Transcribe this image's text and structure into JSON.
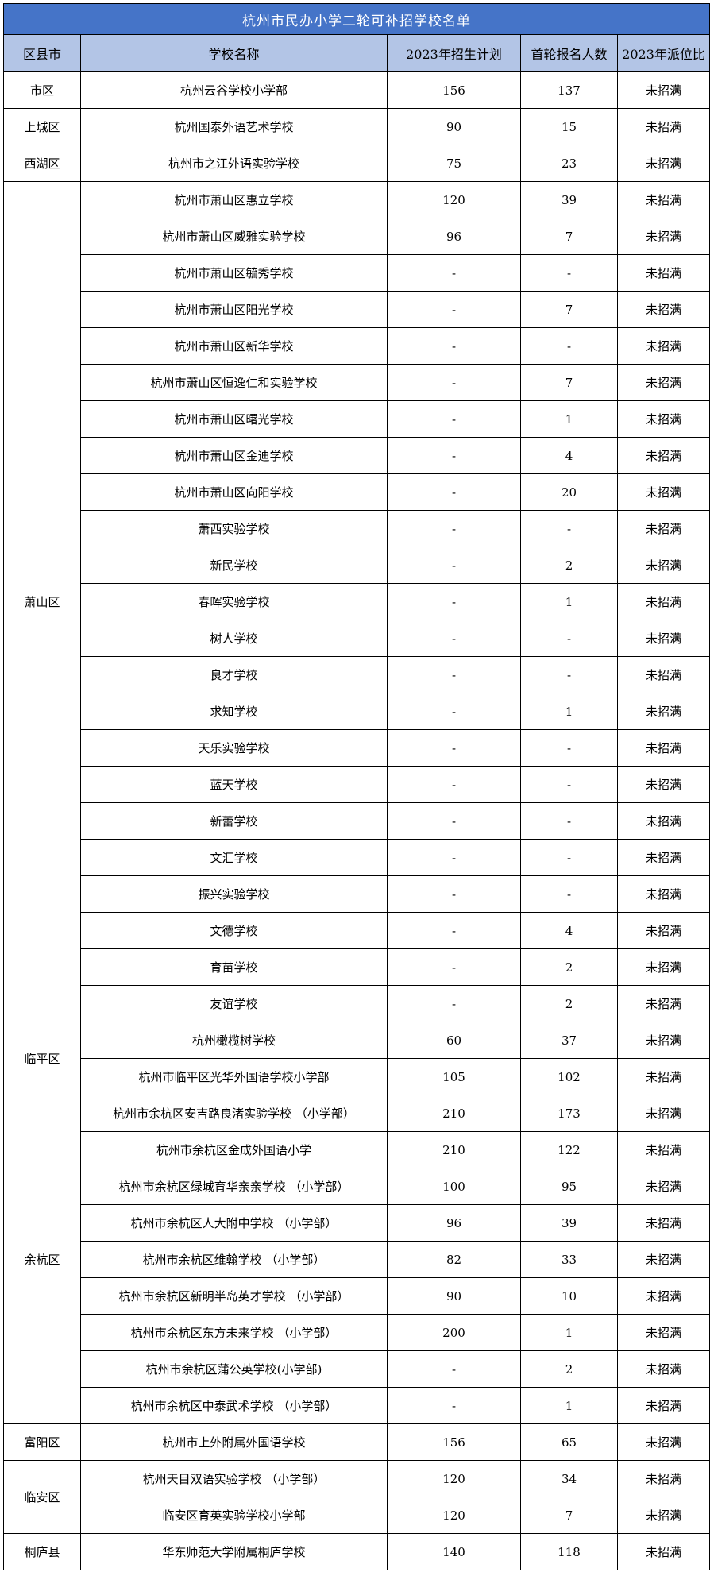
{
  "title": "杭州市民办小学二轮可补招学校名单",
  "columns": [
    "区县市",
    "学校名称",
    "2023年招生计划",
    "首轮报名人数",
    "2023年派位比"
  ],
  "colors": {
    "title_bg": "#4574C8",
    "title_text": "#FFFFFF",
    "header_bg": "#B3C5E6",
    "border": "#000000",
    "cell_bg": "#FFFFFF",
    "text": "#000000"
  },
  "districts": [
    {
      "name": "市区",
      "schools": [
        {
          "name": "杭州云谷学校小学部",
          "plan": "156",
          "applicants": "137",
          "ratio": "未招满"
        }
      ]
    },
    {
      "name": "上城区",
      "schools": [
        {
          "name": "杭州国泰外语艺术学校",
          "plan": "90",
          "applicants": "15",
          "ratio": "未招满"
        }
      ]
    },
    {
      "name": "西湖区",
      "schools": [
        {
          "name": "杭州市之江外语实验学校",
          "plan": "75",
          "applicants": "23",
          "ratio": "未招满"
        }
      ]
    },
    {
      "name": "萧山区",
      "schools": [
        {
          "name": "杭州市萧山区惠立学校",
          "plan": "120",
          "applicants": "39",
          "ratio": "未招满"
        },
        {
          "name": "杭州市萧山区威雅实验学校",
          "plan": "96",
          "applicants": "7",
          "ratio": "未招满"
        },
        {
          "name": "杭州市萧山区毓秀学校",
          "plan": "-",
          "applicants": "-",
          "ratio": "未招满"
        },
        {
          "name": "杭州市萧山区阳光学校",
          "plan": "-",
          "applicants": "7",
          "ratio": "未招满"
        },
        {
          "name": "杭州市萧山区新华学校",
          "plan": "-",
          "applicants": "-",
          "ratio": "未招满"
        },
        {
          "name": "杭州市萧山区恒逸仁和实验学校",
          "plan": "-",
          "applicants": "7",
          "ratio": "未招满"
        },
        {
          "name": "杭州市萧山区曙光学校",
          "plan": "-",
          "applicants": "1",
          "ratio": "未招满"
        },
        {
          "name": "杭州市萧山区金迪学校",
          "plan": "-",
          "applicants": "4",
          "ratio": "未招满"
        },
        {
          "name": "杭州市萧山区向阳学校",
          "plan": "-",
          "applicants": "20",
          "ratio": "未招满"
        },
        {
          "name": "萧西实验学校",
          "plan": "-",
          "applicants": "-",
          "ratio": "未招满"
        },
        {
          "name": "新民学校",
          "plan": "-",
          "applicants": "2",
          "ratio": "未招满"
        },
        {
          "name": "春晖实验学校",
          "plan": "-",
          "applicants": "1",
          "ratio": "未招满"
        },
        {
          "name": "树人学校",
          "plan": "-",
          "applicants": "-",
          "ratio": "未招满"
        },
        {
          "name": "良才学校",
          "plan": "-",
          "applicants": "-",
          "ratio": "未招满"
        },
        {
          "name": "求知学校",
          "plan": "-",
          "applicants": "1",
          "ratio": "未招满"
        },
        {
          "name": "天乐实验学校",
          "plan": "-",
          "applicants": "-",
          "ratio": "未招满"
        },
        {
          "name": "蓝天学校",
          "plan": "-",
          "applicants": "-",
          "ratio": "未招满"
        },
        {
          "name": "新蕾学校",
          "plan": "-",
          "applicants": "-",
          "ratio": "未招满"
        },
        {
          "name": "文汇学校",
          "plan": "-",
          "applicants": "-",
          "ratio": "未招满"
        },
        {
          "name": "振兴实验学校",
          "plan": "-",
          "applicants": "-",
          "ratio": "未招满"
        },
        {
          "name": "文德学校",
          "plan": "-",
          "applicants": "4",
          "ratio": "未招满"
        },
        {
          "name": "育苗学校",
          "plan": "-",
          "applicants": "2",
          "ratio": "未招满"
        },
        {
          "name": "友谊学校",
          "plan": "-",
          "applicants": "2",
          "ratio": "未招满"
        }
      ]
    },
    {
      "name": "临平区",
      "schools": [
        {
          "name": "杭州橄榄树学校",
          "plan": "60",
          "applicants": "37",
          "ratio": "未招满"
        },
        {
          "name": "杭州市临平区光华外国语学校小学部",
          "plan": "105",
          "applicants": "102",
          "ratio": "未招满"
        }
      ]
    },
    {
      "name": "余杭区",
      "schools": [
        {
          "name": "杭州市余杭区安吉路良渚实验学校 （小学部）",
          "plan": "210",
          "applicants": "173",
          "ratio": "未招满"
        },
        {
          "name": "杭州市余杭区金成外国语小学",
          "plan": "210",
          "applicants": "122",
          "ratio": "未招满"
        },
        {
          "name": "杭州市余杭区绿城育华亲亲学校 （小学部）",
          "plan": "100",
          "applicants": "95",
          "ratio": "未招满"
        },
        {
          "name": "杭州市余杭区人大附中学校 （小学部）",
          "plan": "96",
          "applicants": "39",
          "ratio": "未招满"
        },
        {
          "name": "杭州市余杭区维翰学校 （小学部）",
          "plan": "82",
          "applicants": "33",
          "ratio": "未招满"
        },
        {
          "name": "杭州市余杭区新明半岛英才学校 （小学部）",
          "plan": "90",
          "applicants": "10",
          "ratio": "未招满"
        },
        {
          "name": "杭州市余杭区东方未来学校 （小学部）",
          "plan": "200",
          "applicants": "1",
          "ratio": "未招满"
        },
        {
          "name": "杭州市余杭区蒲公英学校(小学部)",
          "plan": "-",
          "applicants": "2",
          "ratio": "未招满"
        },
        {
          "name": "杭州市余杭区中泰武术学校 （小学部）",
          "plan": "-",
          "applicants": "1",
          "ratio": "未招满"
        }
      ]
    },
    {
      "name": "富阳区",
      "schools": [
        {
          "name": "杭州市上外附属外国语学校",
          "plan": "156",
          "applicants": "65",
          "ratio": "未招满"
        }
      ]
    },
    {
      "name": "临安区",
      "schools": [
        {
          "name": "杭州天目双语实验学校 （小学部）",
          "plan": "120",
          "applicants": "34",
          "ratio": "未招满"
        },
        {
          "name": "临安区育英实验学校小学部",
          "plan": "120",
          "applicants": "7",
          "ratio": "未招满"
        }
      ]
    },
    {
      "name": "桐庐县",
      "schools": [
        {
          "name": "华东师范大学附属桐庐学校",
          "plan": "140",
          "applicants": "118",
          "ratio": "未招满"
        }
      ]
    }
  ]
}
